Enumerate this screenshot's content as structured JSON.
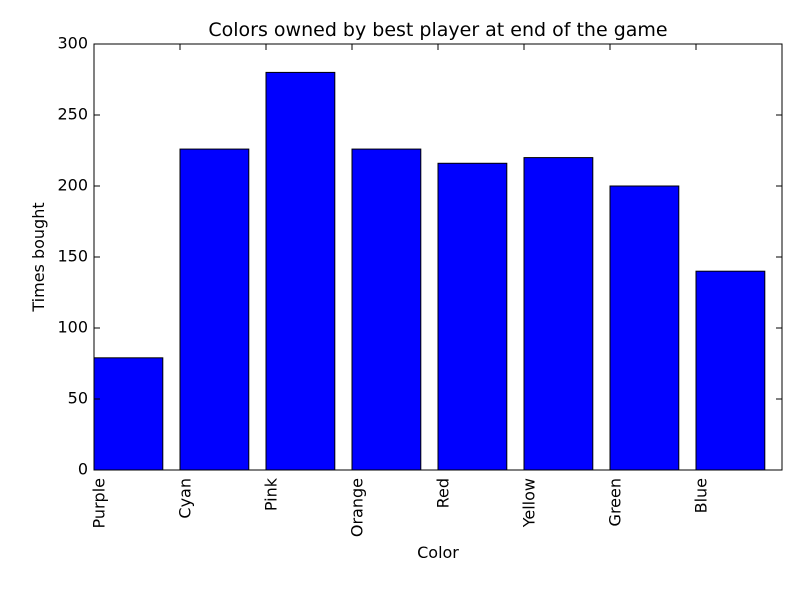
{
  "chart_data": {
    "type": "bar",
    "title": "Colors owned by best player at end of the game",
    "xlabel": "Color",
    "ylabel": "Times bought",
    "categories": [
      "Purple",
      "Cyan",
      "Pink",
      "Orange",
      "Red",
      "Yellow",
      "Green",
      "Blue"
    ],
    "values": [
      79,
      226,
      280,
      226,
      216,
      220,
      200,
      140
    ],
    "ylim": [
      0,
      300
    ],
    "yticks": [
      "0",
      "50",
      "100",
      "150",
      "200",
      "250",
      "300"
    ],
    "bar_color": "#0000ff",
    "edge_color": "#000000",
    "grid": false,
    "legend": "none"
  }
}
